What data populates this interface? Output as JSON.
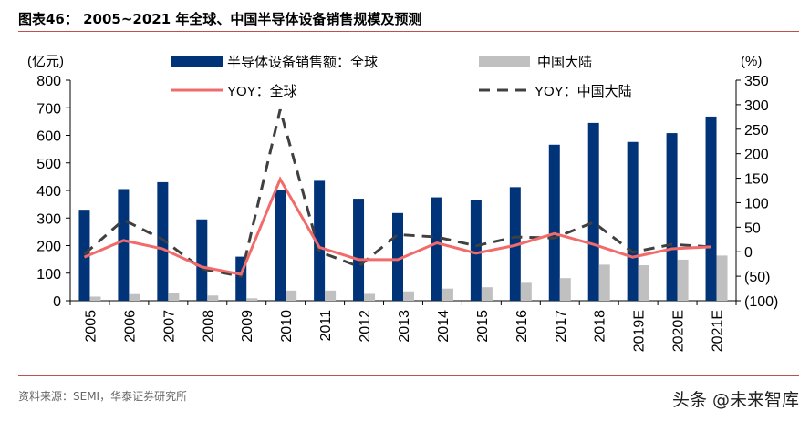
{
  "title": "图表46： 2005~2021 年全球、中国半导体设备销售规模及预测",
  "source": "资料来源：SEMI，华泰证券研究所",
  "watermark": "头条 @未来智库",
  "chart_data": {
    "type": "bar+line",
    "title": "",
    "categories": [
      "2005",
      "2006",
      "2007",
      "2008",
      "2009",
      "2010",
      "2011",
      "2012",
      "2013",
      "2014",
      "2015",
      "2016",
      "2017",
      "2018",
      "2019E",
      "2020E",
      "2021E"
    ],
    "y_left": {
      "label": "(亿元)",
      "range": [
        0,
        800
      ],
      "ticks": [
        "0",
        "100",
        "200",
        "300",
        "400",
        "500",
        "600",
        "700",
        "800"
      ]
    },
    "y_right": {
      "label": "(%)",
      "range": [
        -100,
        350
      ],
      "ticks": [
        "(100)",
        "(50)",
        "0",
        "50",
        "100",
        "150",
        "200",
        "250",
        "300",
        "350"
      ]
    },
    "legend_placement": "top",
    "grid": false,
    "series": [
      {
        "name": "半导体设备销售额：全球",
        "type": "bar",
        "axis": "left",
        "color": "#003378",
        "values": [
          330,
          405,
          430,
          295,
          160,
          400,
          435,
          370,
          318,
          375,
          365,
          412,
          566,
          645,
          576,
          608,
          668
        ]
      },
      {
        "name": "中国大陆",
        "type": "bar",
        "axis": "left",
        "color": "#c0c0c0",
        "values": [
          15,
          24,
          29,
          19,
          9,
          37,
          37,
          25,
          34,
          44,
          49,
          65,
          82,
          131,
          129,
          149,
          164
        ]
      },
      {
        "name": "YOY：全球",
        "type": "line",
        "axis": "right",
        "color": "#f26b6b",
        "dash": false,
        "values": [
          -11,
          23,
          6,
          -31,
          -46,
          148,
          9,
          -16,
          -16,
          18,
          -3,
          13,
          37,
          15,
          -11,
          6,
          10
        ]
      },
      {
        "name": "YOY：中国大陆",
        "type": "line",
        "axis": "right",
        "color": "#404040",
        "dash": true,
        "values": [
          -5,
          65,
          25,
          -35,
          -50,
          290,
          0,
          -30,
          35,
          30,
          12,
          30,
          28,
          60,
          -1,
          15,
          10
        ]
      }
    ]
  }
}
